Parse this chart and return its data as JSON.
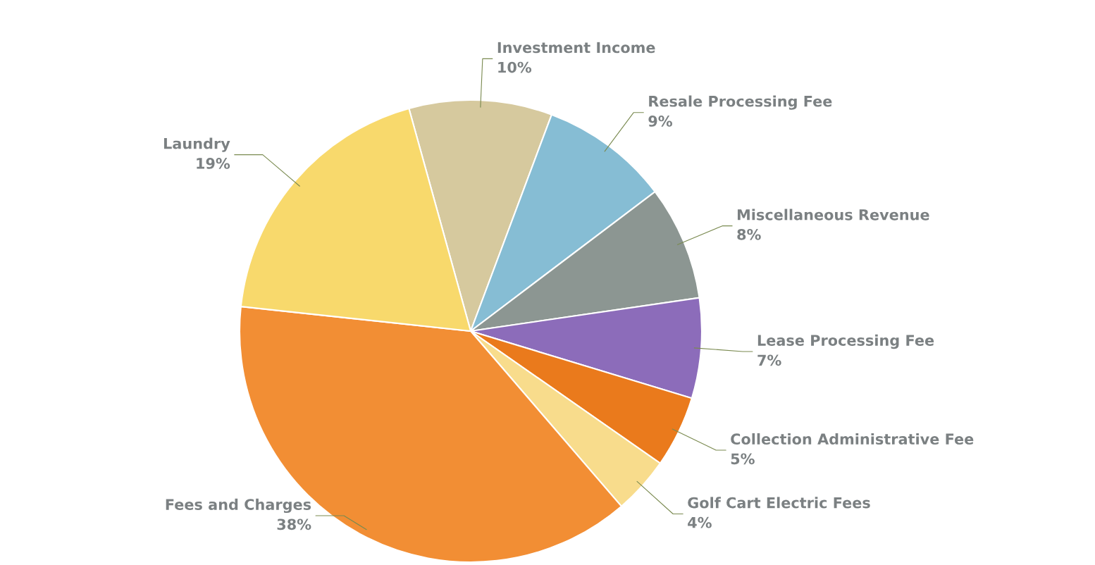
{
  "chart_data": {
    "type": "pie",
    "categories": [
      "Investment Income",
      "Resale Processing Fee",
      "Miscellaneous Revenue",
      "Lease Processing Fee",
      "Collection Administrative Fee",
      "Golf Cart Electric Fees",
      "Fees and Charges",
      "Laundry"
    ],
    "values": [
      10,
      9,
      8,
      7,
      5,
      4,
      38,
      19
    ],
    "value_labels": [
      "10%",
      "9%",
      "8%",
      "7%",
      "5%",
      "4%",
      "38%",
      "19%"
    ],
    "colors": [
      "#d6c99e",
      "#86bdd4",
      "#8c9692",
      "#8c6cba",
      "#ea7a1c",
      "#f8dc8c",
      "#f28e34",
      "#f8d96c"
    ],
    "legend": false
  }
}
